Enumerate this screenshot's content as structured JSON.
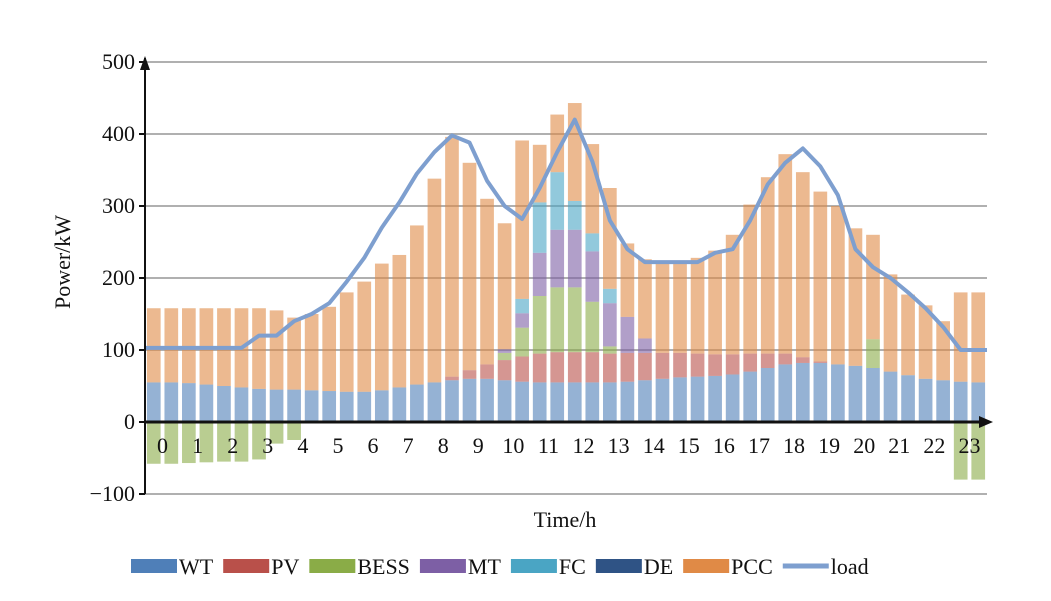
{
  "chart_data": {
    "type": "bar",
    "stacked": true,
    "xlabel": "Time/h",
    "ylabel": "Power/kW",
    "ylim": [
      -100,
      500
    ],
    "yticks": [
      -100,
      0,
      100,
      200,
      300,
      400,
      500
    ],
    "ytick_labels": [
      "−100",
      "0",
      "100",
      "200",
      "300",
      "400",
      "500"
    ],
    "xticks": [
      0,
      1,
      2,
      3,
      4,
      5,
      6,
      7,
      8,
      9,
      10,
      11,
      12,
      13,
      14,
      15,
      16,
      17,
      18,
      19,
      20,
      21,
      22,
      23
    ],
    "x_range": [
      0,
      24
    ],
    "grid": "horizontal",
    "legend_position": "bottom",
    "x": [
      0,
      0.5,
      1,
      1.5,
      2,
      2.5,
      3,
      3.5,
      4,
      4.5,
      5,
      5.5,
      6,
      6.5,
      7,
      7.5,
      8,
      8.5,
      9,
      9.5,
      10,
      10.5,
      11,
      11.5,
      12,
      12.5,
      13,
      13.5,
      14,
      14.5,
      15,
      15.5,
      16,
      16.5,
      17,
      17.5,
      18,
      18.5,
      19,
      19.5,
      20,
      20.5,
      21,
      21.5,
      22,
      22.5,
      23,
      23.5
    ],
    "series": [
      {
        "name": "WT",
        "color": "#4f7fb8",
        "values": [
          55,
          55,
          54,
          52,
          50,
          48,
          46,
          45,
          45,
          44,
          43,
          42,
          42,
          44,
          48,
          52,
          55,
          58,
          60,
          60,
          58,
          56,
          55,
          55,
          55,
          55,
          55,
          56,
          58,
          60,
          62,
          63,
          64,
          66,
          70,
          75,
          80,
          82,
          82,
          80,
          78,
          75,
          70,
          65,
          60,
          58,
          56,
          55
        ]
      },
      {
        "name": "PV",
        "color": "#b9504a",
        "values": [
          0,
          0,
          0,
          0,
          0,
          0,
          0,
          0,
          0,
          0,
          0,
          0,
          0,
          0,
          0,
          0,
          0,
          5,
          12,
          20,
          28,
          35,
          40,
          42,
          42,
          42,
          40,
          40,
          38,
          36,
          34,
          32,
          30,
          28,
          25,
          20,
          15,
          8,
          2,
          0,
          0,
          0,
          0,
          0,
          0,
          0,
          0,
          0
        ]
      },
      {
        "name": "BESS",
        "color": "#8aac47",
        "values": [
          -58,
          -58,
          -57,
          -56,
          -55,
          -55,
          -52,
          -30,
          -25,
          0,
          0,
          0,
          0,
          0,
          0,
          0,
          0,
          0,
          0,
          0,
          10,
          40,
          80,
          90,
          90,
          70,
          10,
          0,
          0,
          0,
          0,
          0,
          0,
          0,
          0,
          0,
          0,
          0,
          0,
          0,
          0,
          40,
          0,
          0,
          0,
          0,
          -80,
          -80
        ]
      },
      {
        "name": "MT",
        "color": "#7d5fa5",
        "values": [
          0,
          0,
          0,
          0,
          0,
          0,
          0,
          0,
          0,
          0,
          0,
          0,
          0,
          0,
          0,
          0,
          0,
          0,
          0,
          0,
          5,
          20,
          60,
          80,
          80,
          70,
          60,
          50,
          20,
          0,
          0,
          0,
          0,
          0,
          0,
          0,
          0,
          0,
          0,
          0,
          0,
          0,
          0,
          0,
          0,
          0,
          0,
          0
        ]
      },
      {
        "name": "FC",
        "color": "#4aa5c4",
        "values": [
          0,
          0,
          0,
          0,
          0,
          0,
          0,
          0,
          0,
          0,
          0,
          0,
          0,
          0,
          0,
          0,
          0,
          0,
          0,
          0,
          0,
          20,
          70,
          80,
          40,
          25,
          20,
          0,
          0,
          0,
          0,
          0,
          0,
          0,
          0,
          0,
          0,
          0,
          0,
          0,
          0,
          0,
          0,
          0,
          0,
          0,
          0,
          0
        ]
      },
      {
        "name": "DE",
        "color": "#2f5385",
        "values": [
          0,
          0,
          0,
          0,
          0,
          0,
          0,
          0,
          0,
          0,
          0,
          0,
          0,
          0,
          0,
          0,
          0,
          0,
          0,
          0,
          0,
          0,
          0,
          0,
          0,
          0,
          0,
          0,
          0,
          0,
          0,
          0,
          0,
          0,
          0,
          0,
          0,
          0,
          0,
          0,
          0,
          0,
          0,
          0,
          0,
          0,
          0,
          0
        ]
      },
      {
        "name": "PCC",
        "color": "#e08a46",
        "values": [
          103,
          103,
          104,
          106,
          108,
          110,
          112,
          110,
          100,
          106,
          117,
          138,
          153,
          176,
          184,
          221,
          283,
          333,
          288,
          230,
          175,
          220,
          80,
          80,
          136,
          124,
          140,
          102,
          110,
          124,
          124,
          133,
          144,
          166,
          207,
          245,
          277,
          257,
          236,
          220,
          191,
          145,
          135,
          112,
          102,
          82,
          124,
          125
        ]
      }
    ],
    "load": {
      "name": "load",
      "color": "#7e9fcf",
      "values": [
        103,
        103,
        103,
        103,
        103,
        103,
        120,
        120,
        140,
        150,
        165,
        195,
        228,
        270,
        305,
        345,
        375,
        398,
        388,
        335,
        300,
        282,
        325,
        375,
        420,
        362,
        280,
        240,
        222,
        222,
        222,
        222,
        235,
        240,
        280,
        330,
        360,
        380,
        355,
        315,
        240,
        215,
        200,
        180,
        158,
        132,
        100,
        100
      ]
    },
    "legend": [
      {
        "name": "WT",
        "kind": "bar",
        "color": "#4f7fb8"
      },
      {
        "name": "PV",
        "kind": "bar",
        "color": "#b9504a"
      },
      {
        "name": "BESS",
        "kind": "bar",
        "color": "#8aac47"
      },
      {
        "name": "MT",
        "kind": "bar",
        "color": "#7d5fa5"
      },
      {
        "name": "FC",
        "kind": "bar",
        "color": "#4aa5c4"
      },
      {
        "name": "DE",
        "kind": "bar",
        "color": "#2f5385"
      },
      {
        "name": "PCC",
        "kind": "bar",
        "color": "#e08a46"
      },
      {
        "name": "load",
        "kind": "line",
        "color": "#7e9fcf"
      }
    ]
  }
}
